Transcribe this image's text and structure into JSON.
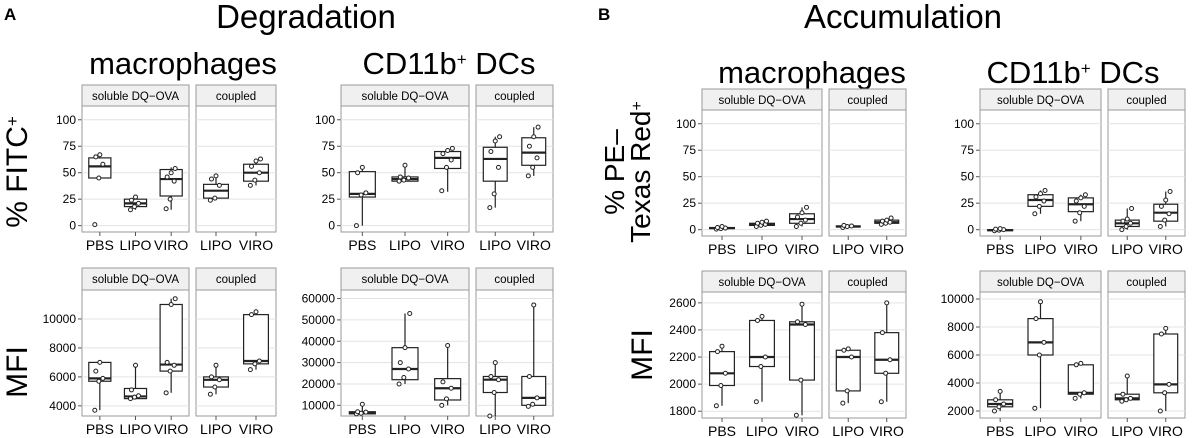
{
  "panel_a": {
    "letter": "A",
    "title": "Degradation",
    "col_left": "macrophages",
    "col_right_base": "CD11b",
    "col_right_sup": "+",
    "col_right_rest": " DCs"
  },
  "panel_b": {
    "letter": "B",
    "title": "Accumulation",
    "col_left": "macrophages",
    "col_right_base": "CD11b",
    "col_right_sup": "+",
    "col_right_rest": " DCs"
  },
  "ylabels": {
    "a_top_base": "% FITC",
    "a_top_sup": "+",
    "a_bottom": "MFI",
    "b_top_line1": "% PE–",
    "b_top_line2_base": "Texas Red",
    "b_top_line2_sup": "+",
    "b_bottom": "MFI"
  },
  "strips": {
    "soluble": "soluble DQ−OVA",
    "coupled": "coupled"
  },
  "chart_data": [
    {
      "id": "a_mac_frac",
      "type": "box",
      "title": "macrophages",
      "ylabel": "% FITC+",
      "ylim": [
        -6,
        113
      ],
      "yticks": [
        0,
        25,
        50,
        75,
        100
      ],
      "yticklabels": [
        "0",
        "25",
        "50",
        "75",
        "100"
      ],
      "facets": [
        {
          "strip": "soluble DQ−OVA",
          "groups": [
            {
              "label": "PBS",
              "q1": 45,
              "median": 56,
              "q3": 64,
              "lo": 45,
              "hi": 67,
              "points": [
                1,
                45,
                58,
                65,
                67
              ]
            },
            {
              "label": "LIPO",
              "q1": 18,
              "median": 21,
              "q3": 25,
              "lo": 15,
              "hi": 28,
              "points": [
                15,
                18,
                21,
                24,
                27
              ]
            },
            {
              "label": "VIRO",
              "q1": 28,
              "median": 44,
              "q3": 53,
              "lo": 15,
              "hi": 55,
              "points": [
                16,
                25,
                42,
                46,
                50,
                54
              ]
            }
          ]
        },
        {
          "strip": "coupled",
          "groups": [
            {
              "label": "LIPO",
              "q1": 26,
              "median": 33,
              "q3": 39,
              "lo": 24,
              "hi": 47,
              "points": [
                24,
                26,
                38,
                44,
                47
              ]
            },
            {
              "label": "VIRO",
              "q1": 42,
              "median": 50,
              "q3": 58,
              "lo": 38,
              "hi": 63,
              "points": [
                38,
                43,
                50,
                56,
                61,
                63
              ]
            }
          ]
        }
      ]
    },
    {
      "id": "a_dc_frac",
      "type": "box",
      "title": "CD11b+ DCs",
      "ylabel": "% FITC+",
      "ylim": [
        -6,
        113
      ],
      "yticks": [
        0,
        25,
        50,
        75,
        100
      ],
      "yticklabels": [
        "0",
        "25",
        "50",
        "75",
        "100"
      ],
      "facets": [
        {
          "strip": "soluble DQ−OVA",
          "groups": [
            {
              "label": "PBS",
              "q1": 27,
              "median": 30,
              "q3": 51,
              "lo": 0,
              "hi": 55,
              "points": [
                0,
                29,
                31,
                50,
                55
              ]
            },
            {
              "label": "LIPO",
              "q1": 42,
              "median": 44,
              "q3": 46,
              "lo": 42,
              "hi": 57,
              "points": [
                42,
                43,
                45,
                46,
                57
              ]
            },
            {
              "label": "VIRO",
              "q1": 54,
              "median": 64,
              "q3": 70,
              "lo": 32,
              "hi": 73,
              "points": [
                33,
                55,
                62,
                68,
                71,
                73
              ]
            }
          ]
        },
        {
          "strip": "coupled",
          "groups": [
            {
              "label": "LIPO",
              "q1": 42,
              "median": 63,
              "q3": 74,
              "lo": 17,
              "hi": 84,
              "points": [
                17,
                30,
                55,
                70,
                80,
                84
              ]
            },
            {
              "label": "VIRO",
              "q1": 57,
              "median": 69,
              "q3": 83,
              "lo": 47,
              "hi": 93,
              "points": [
                47,
                55,
                64,
                75,
                84,
                93
              ]
            }
          ]
        }
      ]
    },
    {
      "id": "a_mac_mfi",
      "type": "box",
      "title": "macrophages",
      "ylabel": "MFI",
      "ylim": [
        3300,
        12000
      ],
      "yticks": [
        4000,
        6000,
        8000,
        10000
      ],
      "yticklabels": [
        "4000",
        "6000",
        "8000",
        "10000"
      ],
      "facets": [
        {
          "strip": "soluble DQ−OVA",
          "groups": [
            {
              "label": "PBS",
              "q1": 5700,
              "median": 5900,
              "q3": 7000,
              "lo": 3700,
              "hi": 7050,
              "points": [
                3700,
                5700,
                5900,
                6400,
                7000
              ]
            },
            {
              "label": "LIPO",
              "q1": 4500,
              "median": 4650,
              "q3": 5200,
              "lo": 4500,
              "hi": 6800,
              "points": [
                4500,
                4600,
                4700,
                5100,
                6800
              ]
            },
            {
              "label": "VIRO",
              "q1": 6400,
              "median": 6850,
              "q3": 11000,
              "lo": 4900,
              "hi": 11400,
              "points": [
                4900,
                6400,
                6800,
                7000,
                11000,
                11400
              ]
            }
          ]
        },
        {
          "strip": "coupled",
          "groups": [
            {
              "label": "LIPO",
              "q1": 5300,
              "median": 5800,
              "q3": 6000,
              "lo": 4800,
              "hi": 6800,
              "points": [
                4800,
                5300,
                5800,
                6000,
                6800
              ]
            },
            {
              "label": "VIRO",
              "q1": 6900,
              "median": 7100,
              "q3": 10300,
              "lo": 6500,
              "hi": 10500,
              "points": [
                6500,
                6900,
                7100,
                10300,
                10500
              ]
            }
          ]
        }
      ]
    },
    {
      "id": "a_dc_mfi",
      "type": "box",
      "title": "CD11b+ DCs",
      "ylabel": "MFI",
      "ylim": [
        5000,
        64000
      ],
      "yticks": [
        10000,
        20000,
        30000,
        40000,
        50000,
        60000
      ],
      "yticklabels": [
        "10000",
        "20000",
        "30000",
        "40000",
        "50000",
        "60000"
      ],
      "facets": [
        {
          "strip": "soluble DQ−OVA",
          "groups": [
            {
              "label": "PBS",
              "q1": 6000,
              "median": 6500,
              "q3": 7000,
              "lo": 6000,
              "hi": 10500,
              "points": [
                6000,
                6300,
                6800,
                7000,
                10500
              ]
            },
            {
              "label": "LIPO",
              "q1": 22000,
              "median": 27000,
              "q3": 37000,
              "lo": 20000,
              "hi": 53000,
              "points": [
                20000,
                23000,
                27000,
                30000,
                37000,
                53000
              ]
            },
            {
              "label": "VIRO",
              "q1": 12500,
              "median": 18000,
              "q3": 22500,
              "lo": 10000,
              "hi": 38000,
              "points": [
                10000,
                13000,
                18000,
                21000,
                38000
              ]
            }
          ]
        },
        {
          "strip": "coupled",
          "groups": [
            {
              "label": "LIPO",
              "q1": 16000,
              "median": 22000,
              "q3": 23500,
              "lo": 5000,
              "hi": 30000,
              "points": [
                5000,
                16000,
                22000,
                23500,
                30000
              ]
            },
            {
              "label": "VIRO",
              "q1": 10000,
              "median": 13500,
              "q3": 23500,
              "lo": 9500,
              "hi": 57000,
              "points": [
                9500,
                10500,
                13500,
                23500,
                57000
              ]
            }
          ]
        }
      ]
    },
    {
      "id": "b_mac_frac",
      "type": "box",
      "title": "macrophages",
      "ylabel": "% PE–Texas Red+",
      "ylim": [
        -6,
        113
      ],
      "yticks": [
        0,
        25,
        50,
        75,
        100
      ],
      "yticklabels": [
        "0",
        "25",
        "50",
        "75",
        "100"
      ],
      "facets": [
        {
          "strip": "soluble DQ−OVA",
          "groups": [
            {
              "label": "PBS",
              "q1": 1,
              "median": 1.5,
              "q3": 2,
              "lo": 0.5,
              "hi": 3,
              "points": [
                0.5,
                1,
                1.5,
                2,
                3
              ]
            },
            {
              "label": "LIPO",
              "q1": 4,
              "median": 5,
              "q3": 6,
              "lo": 3,
              "hi": 8,
              "points": [
                3,
                4,
                5,
                6,
                7,
                8
              ]
            },
            {
              "label": "VIRO",
              "q1": 6,
              "median": 10,
              "q3": 15,
              "lo": 3,
              "hi": 21,
              "points": [
                3,
                6,
                9,
                12,
                16,
                21
              ]
            }
          ]
        },
        {
          "strip": "coupled",
          "groups": [
            {
              "label": "LIPO",
              "q1": 2.5,
              "median": 3,
              "q3": 3.5,
              "lo": 2,
              "hi": 4,
              "points": [
                2,
                3,
                3.5,
                4
              ]
            },
            {
              "label": "VIRO",
              "q1": 6,
              "median": 7,
              "q3": 9,
              "lo": 5,
              "hi": 11,
              "points": [
                5,
                6,
                7,
                8,
                9,
                11
              ]
            }
          ]
        }
      ]
    },
    {
      "id": "b_dc_frac",
      "type": "box",
      "title": "CD11b+ DCs",
      "ylabel": "% PE–Texas Red+",
      "ylim": [
        -6,
        113
      ],
      "yticks": [
        0,
        25,
        50,
        75,
        100
      ],
      "yticklabels": [
        "0",
        "25",
        "50",
        "75",
        "100"
      ],
      "facets": [
        {
          "strip": "soluble DQ−OVA",
          "groups": [
            {
              "label": "PBS",
              "q1": -1,
              "median": -0.5,
              "q3": 0,
              "lo": -1,
              "hi": 1,
              "points": [
                -1,
                -0.5,
                0,
                0.5,
                1
              ]
            },
            {
              "label": "LIPO",
              "q1": 22,
              "median": 28,
              "q3": 33,
              "lo": 15,
              "hi": 37,
              "points": [
                15,
                22,
                27,
                31,
                34,
                37
              ]
            },
            {
              "label": "VIRO",
              "q1": 17,
              "median": 24,
              "q3": 30,
              "lo": 8,
              "hi": 33,
              "points": [
                8,
                16,
                22,
                27,
                30,
                33
              ]
            }
          ]
        },
        {
          "strip": "coupled",
          "groups": [
            {
              "label": "LIPO",
              "q1": 3,
              "median": 6,
              "q3": 9,
              "lo": 0,
              "hi": 20,
              "points": [
                0,
                3,
                6,
                8,
                10,
                20
              ]
            },
            {
              "label": "VIRO",
              "q1": 8,
              "median": 16,
              "q3": 24,
              "lo": 3,
              "hi": 36,
              "points": [
                3,
                9,
                15,
                22,
                28,
                36
              ]
            }
          ]
        }
      ]
    },
    {
      "id": "b_mac_mfi",
      "type": "box",
      "title": "macrophages",
      "ylabel": "MFI",
      "ylim": [
        1750,
        2680
      ],
      "yticks": [
        1800,
        2000,
        2200,
        2400,
        2600
      ],
      "yticklabels": [
        "1800",
        "2000",
        "2200",
        "2400",
        "2600"
      ],
      "facets": [
        {
          "strip": "soluble DQ−OVA",
          "groups": [
            {
              "label": "PBS",
              "q1": 1990,
              "median": 2080,
              "q3": 2240,
              "lo": 1840,
              "hi": 2280,
              "points": [
                1840,
                1990,
                2080,
                2240,
                2280
              ]
            },
            {
              "label": "LIPO",
              "q1": 2130,
              "median": 2200,
              "q3": 2470,
              "lo": 1870,
              "hi": 2500,
              "points": [
                1870,
                2130,
                2200,
                2470,
                2500
              ]
            },
            {
              "label": "VIRO",
              "q1": 2030,
              "median": 2440,
              "q3": 2460,
              "lo": 1770,
              "hi": 2590,
              "points": [
                1770,
                2030,
                2440,
                2460,
                2590
              ]
            }
          ]
        },
        {
          "strip": "coupled",
          "groups": [
            {
              "label": "LIPO",
              "q1": 1950,
              "median": 2200,
              "q3": 2250,
              "lo": 1860,
              "hi": 2260,
              "points": [
                1860,
                1950,
                2200,
                2250,
                2260
              ]
            },
            {
              "label": "VIRO",
              "q1": 2080,
              "median": 2180,
              "q3": 2380,
              "lo": 1870,
              "hi": 2600,
              "points": [
                1870,
                2080,
                2180,
                2380,
                2600
              ]
            }
          ]
        }
      ]
    },
    {
      "id": "b_dc_mfi",
      "type": "box",
      "title": "CD11b+ DCs",
      "ylabel": "MFI",
      "ylim": [
        1500,
        10500
      ],
      "yticks": [
        2000,
        4000,
        6000,
        8000,
        10000
      ],
      "yticklabels": [
        "2000",
        "4000",
        "6000",
        "8000",
        "10000"
      ],
      "facets": [
        {
          "strip": "soluble DQ−OVA",
          "groups": [
            {
              "label": "PBS",
              "q1": 2300,
              "median": 2500,
              "q3": 2800,
              "lo": 2000,
              "hi": 3400,
              "points": [
                2000,
                2300,
                2500,
                2800,
                3400
              ]
            },
            {
              "label": "LIPO",
              "q1": 6000,
              "median": 6900,
              "q3": 8600,
              "lo": 2200,
              "hi": 9800,
              "points": [
                2200,
                6000,
                6900,
                8600,
                9800
              ]
            },
            {
              "label": "VIRO",
              "q1": 3200,
              "median": 3300,
              "q3": 5300,
              "lo": 2900,
              "hi": 5400,
              "points": [
                2900,
                3200,
                3300,
                5300,
                5400
              ]
            }
          ]
        },
        {
          "strip": "coupled",
          "groups": [
            {
              "label": "LIPO",
              "q1": 2800,
              "median": 2900,
              "q3": 3200,
              "lo": 2700,
              "hi": 4500,
              "points": [
                2700,
                2800,
                2900,
                3200,
                4500
              ]
            },
            {
              "label": "VIRO",
              "q1": 3300,
              "median": 3900,
              "q3": 7500,
              "lo": 2000,
              "hi": 7900,
              "points": [
                2000,
                3300,
                3900,
                7500,
                7900
              ]
            }
          ]
        }
      ]
    }
  ]
}
